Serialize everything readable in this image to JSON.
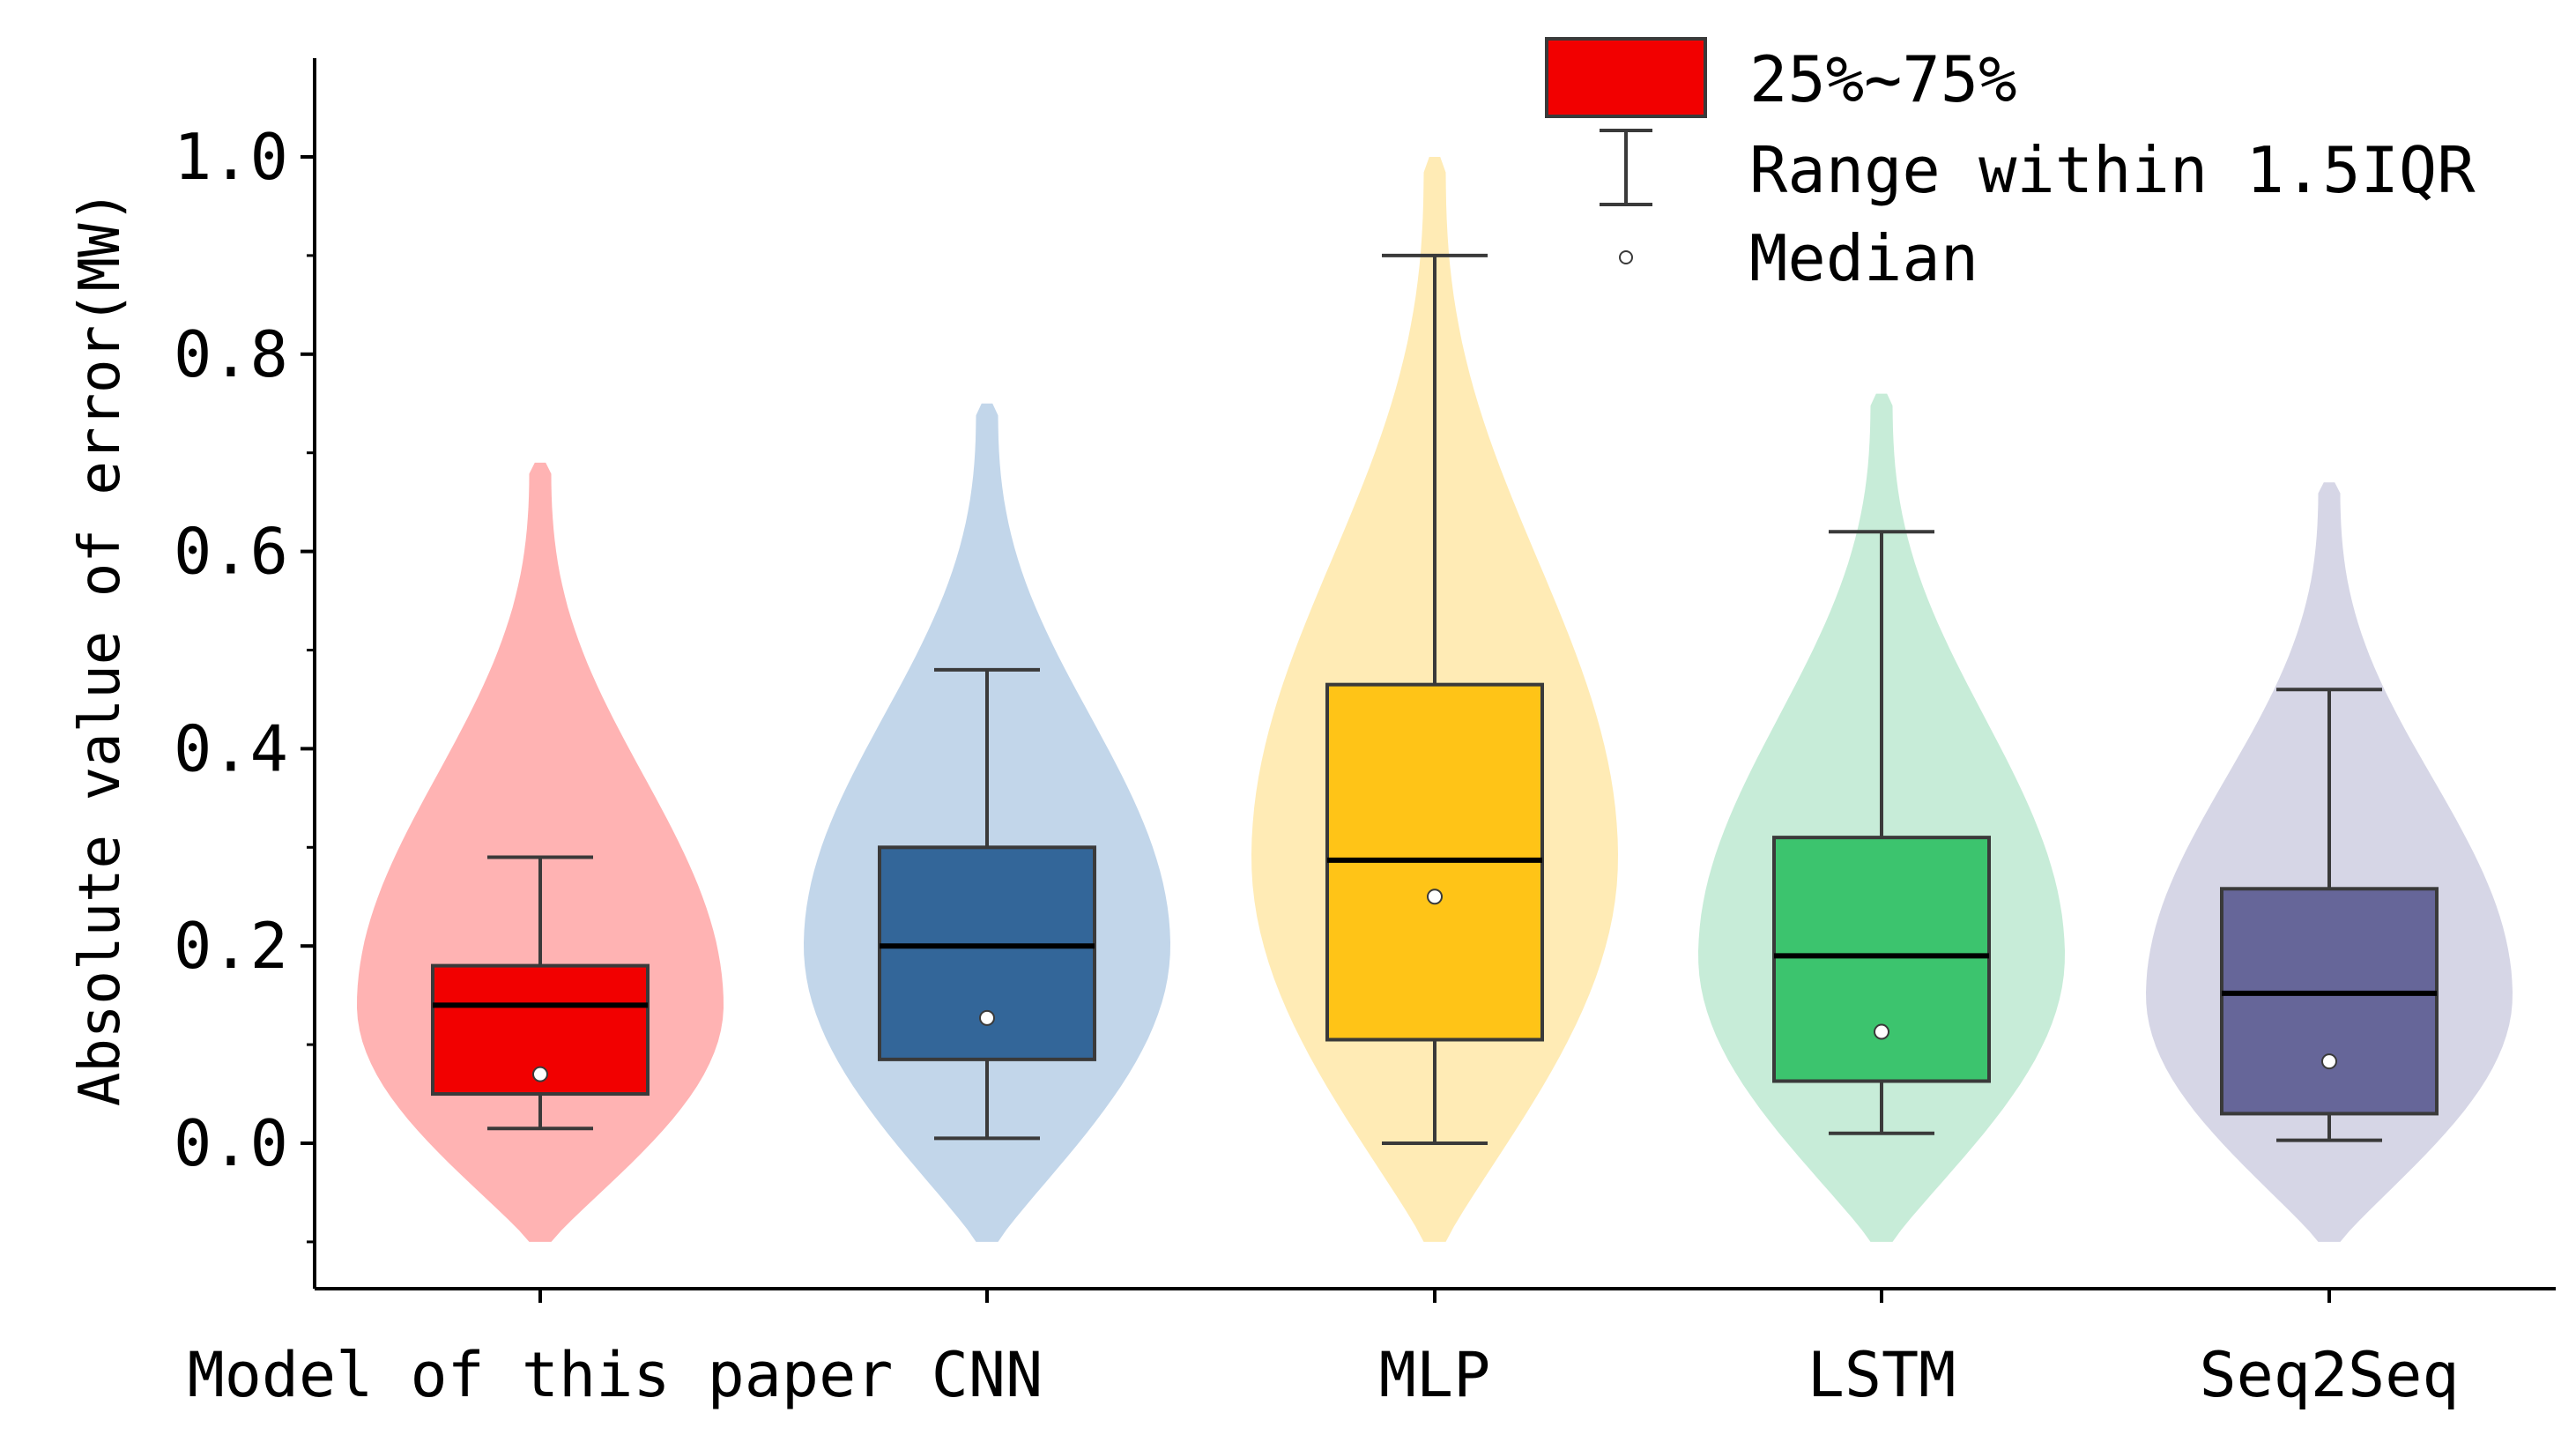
{
  "chart_data": {
    "type": "violin-box",
    "title": "",
    "xlabel": "",
    "ylabel": "Absolute value of error(MW)",
    "ylim": [
      -0.15,
      1.1
    ],
    "yticks": [
      0.0,
      0.2,
      0.4,
      0.6,
      0.8,
      1.0
    ],
    "ytick_labels": [
      "0.0",
      "0.2",
      "0.4",
      "0.6",
      "0.8",
      "1.0"
    ],
    "grid": false,
    "legend_position": "top-right",
    "legend": {
      "box_label": "25%~75%",
      "whisker_label": "Range within 1.5IQR",
      "median_label": "Median"
    },
    "categories": [
      "Model of this paper",
      "CNN",
      "MLP",
      "LSTM",
      "Seq2Seq"
    ],
    "series": [
      {
        "name": "Model of this paper",
        "box_color": "#f20000",
        "violin_color": "#ffb3b3",
        "violin_min": -0.1,
        "violin_max": 0.69,
        "violin_mode": 0.14,
        "violin_halfwidth": 0.44,
        "q1": 0.05,
        "q3": 0.18,
        "median_line": 0.14,
        "median_point": 0.07,
        "whisker_low": 0.015,
        "whisker_high": 0.29
      },
      {
        "name": "CNN",
        "box_color": "#336699",
        "violin_color": "#c2d6ea",
        "violin_min": -0.1,
        "violin_max": 0.75,
        "violin_mode": 0.2,
        "violin_halfwidth": 0.44,
        "q1": 0.085,
        "q3": 0.3,
        "median_line": 0.2,
        "median_point": 0.127,
        "whisker_low": 0.005,
        "whisker_high": 0.48
      },
      {
        "name": "MLP",
        "box_color": "#ffc417",
        "violin_color": "#ffebb5",
        "violin_min": -0.1,
        "violin_max": 1.0,
        "violin_mode": 0.29,
        "violin_halfwidth": 0.44,
        "q1": 0.105,
        "q3": 0.465,
        "median_line": 0.287,
        "median_point": 0.25,
        "whisker_low": 0.0,
        "whisker_high": 0.9
      },
      {
        "name": "LSTM",
        "box_color": "#3cc46e",
        "violin_color": "#c7ecd8",
        "violin_min": -0.1,
        "violin_max": 0.76,
        "violin_mode": 0.19,
        "violin_halfwidth": 0.44,
        "q1": 0.063,
        "q3": 0.31,
        "median_line": 0.19,
        "median_point": 0.113,
        "whisker_low": 0.01,
        "whisker_high": 0.62
      },
      {
        "name": "Seq2Seq",
        "box_color": "#666699",
        "violin_color": "#d6d6e6",
        "violin_min": -0.1,
        "violin_max": 0.67,
        "violin_mode": 0.15,
        "violin_halfwidth": 0.44,
        "q1": 0.03,
        "q3": 0.258,
        "median_line": 0.152,
        "median_point": 0.083,
        "whisker_low": 0.003,
        "whisker_high": 0.46
      }
    ]
  }
}
